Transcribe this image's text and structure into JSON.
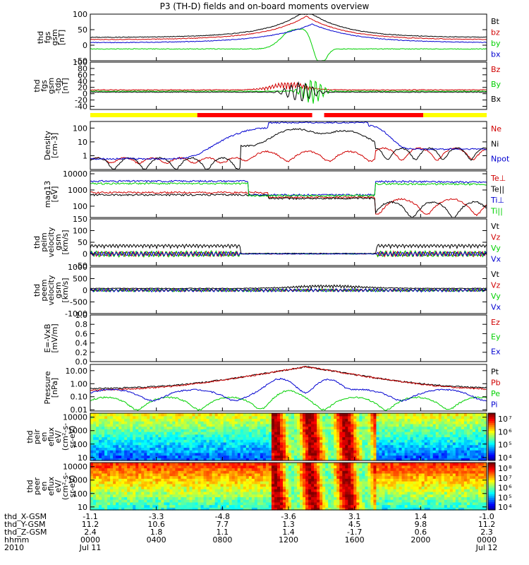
{
  "chart_data": {
    "type": "line",
    "title": "P3 (TH-D) fields and on-board moments overview",
    "time_axis": {
      "rows": [
        {
          "label": "thd_X-GSM",
          "values": [
            "-1.1",
            "-3.3",
            "-4.8",
            "-3.6",
            "3.1",
            "1.4",
            "-1.0"
          ]
        },
        {
          "label": "thd_Y-GSM",
          "values": [
            "11.2",
            "10.6",
            "7.7",
            "1.3",
            "4.5",
            "9.8",
            "11.2"
          ]
        },
        {
          "label": "thd_Z-GSM",
          "values": [
            "2.4",
            "1.8",
            "1.1",
            "1.4",
            "-1.7",
            "0.6",
            "2.3"
          ]
        },
        {
          "label": "hhmm",
          "values": [
            "0000",
            "0400",
            "0800",
            "1200",
            "1600",
            "2000",
            "0000"
          ]
        },
        {
          "label": "2010",
          "values": [
            "Jul 11",
            "",
            "",
            "",
            "",
            "",
            "Jul 12"
          ]
        }
      ]
    },
    "panels": [
      {
        "id": "fgs-gsm",
        "ylabel": [
          "thd",
          "fgs",
          "gsm",
          "[nT]"
        ],
        "ylim": [
          -50,
          100
        ],
        "scale": "linear",
        "ticks": [
          "100",
          "50",
          "0",
          "-50"
        ],
        "series": [
          {
            "name": "Bt",
            "color": "#000000"
          },
          {
            "name": "bz",
            "color": "#d00000"
          },
          {
            "name": "by",
            "color": "#00d000"
          },
          {
            "name": "bx",
            "color": "#0000d0"
          }
        ]
      },
      {
        "id": "fgs-gsm-tdp",
        "ylabel": [
          "thd",
          "fgs",
          "gsm",
          "-tdp",
          "[nT]"
        ],
        "ylim": [
          -50,
          100
        ],
        "scale": "linear",
        "ticks": [
          "100",
          "80",
          "60",
          "40",
          "20",
          "0",
          "-20",
          "-40"
        ],
        "series": [
          {
            "name": "Bz",
            "color": "#d00000"
          },
          {
            "name": "By",
            "color": "#00d000"
          },
          {
            "name": "Bx",
            "color": "#000000"
          }
        ]
      },
      {
        "id": "density",
        "ylabel": [
          "Density",
          "[cm-3]"
        ],
        "ylim": [
          0.1,
          300
        ],
        "scale": "log",
        "ticks": [
          "100",
          "10",
          "1"
        ],
        "series": [
          {
            "name": "Ne",
            "color": "#d00000"
          },
          {
            "name": "Ni",
            "color": "#000000"
          },
          {
            "name": "Npot",
            "color": "#0000d0"
          }
        ]
      },
      {
        "id": "temperature",
        "ylabel": [
          "mag13",
          "[eV]"
        ],
        "ylim": [
          20,
          15000
        ],
        "scale": "log",
        "ticks": [
          "10000",
          "1000",
          "100"
        ],
        "series": [
          {
            "name": "Te⊥",
            "color": "#d00000"
          },
          {
            "name": "Te||",
            "color": "#000000"
          },
          {
            "name": "Ti⊥",
            "color": "#0000d0"
          },
          {
            "name": "Ti||",
            "color": "#00d000"
          }
        ]
      },
      {
        "id": "peim-velocity",
        "ylabel": [
          "thd",
          "peim",
          "velocity",
          "gsm",
          "[km/s]"
        ],
        "ylim": [
          -50,
          150
        ],
        "scale": "linear",
        "ticks": [
          "150",
          "100",
          "50",
          "0",
          "-50"
        ],
        "series": [
          {
            "name": "Vt",
            "color": "#000000"
          },
          {
            "name": "Vz",
            "color": "#d00000"
          },
          {
            "name": "Vy",
            "color": "#00d000"
          },
          {
            "name": "Vx",
            "color": "#0000d0"
          }
        ]
      },
      {
        "id": "peem-velocity",
        "ylabel": [
          "thd",
          "peem",
          "velocity",
          "gsm",
          "[km/s]"
        ],
        "ylim": [
          -1000,
          1000
        ],
        "scale": "linear",
        "ticks": [
          "1000",
          "500",
          "0",
          "-500",
          "-1000"
        ],
        "series": [
          {
            "name": "Vt",
            "color": "#000000"
          },
          {
            "name": "Vz",
            "color": "#d00000"
          },
          {
            "name": "Vy",
            "color": "#00d000"
          },
          {
            "name": "Vx",
            "color": "#0000d0"
          }
        ]
      },
      {
        "id": "efield",
        "ylabel": [
          "E=-VxB",
          "[mV/m]"
        ],
        "ylim": [
          0,
          1
        ],
        "scale": "linear",
        "ticks": [
          "1.0",
          "0.8",
          "0.6",
          "0.4",
          "0.2",
          "0.0"
        ],
        "series": [
          {
            "name": "Ez",
            "color": "#d00000"
          },
          {
            "name": "Ey",
            "color": "#00d000"
          },
          {
            "name": "Ex",
            "color": "#0000d0"
          }
        ]
      },
      {
        "id": "pressure",
        "ylabel": [
          "Pressure",
          "[nPa]"
        ],
        "ylim": [
          0.008,
          30
        ],
        "scale": "log",
        "ticks": [
          "10.00",
          "1.00",
          "0.10",
          "0.01"
        ],
        "series": [
          {
            "name": "Pt",
            "color": "#000000"
          },
          {
            "name": "Pb",
            "color": "#d00000"
          },
          {
            "name": "Pe",
            "color": "#00d000"
          },
          {
            "name": "Pi",
            "color": "#0000d0"
          }
        ]
      },
      {
        "id": "peir-eflux",
        "ylabel": [
          "thd",
          "peir",
          "en",
          "eflux",
          "eV/",
          "(cm^2-s-",
          "sr-eV)"
        ],
        "ylim": [
          6,
          20000
        ],
        "scale": "log",
        "ticks": [
          "10000",
          "1000",
          "100",
          "10"
        ],
        "colorbar": [
          "10^7",
          "10^6",
          "10^5",
          "10^4"
        ]
      },
      {
        "id": "peer-eflux",
        "ylabel": [
          "thd",
          "peer",
          "en",
          "eflux",
          "eV/",
          "(cm^2-s-",
          "sr-eV)"
        ],
        "ylim": [
          6,
          20000
        ],
        "scale": "log",
        "ticks": [
          "10000",
          "1000",
          "100",
          "10"
        ],
        "colorbar": [
          "10^8",
          "10^7",
          "10^6",
          "10^5",
          "10^4"
        ]
      }
    ],
    "mode_bar": {
      "segments": [
        {
          "from": 0.0,
          "to": 0.27,
          "color": "#ffff00"
        },
        {
          "from": 0.27,
          "to": 0.56,
          "color": "#ff0000"
        },
        {
          "from": 0.56,
          "to": 0.59,
          "color": "#ffffff"
        },
        {
          "from": 0.59,
          "to": 0.84,
          "color": "#ff0000"
        },
        {
          "from": 0.84,
          "to": 1.0,
          "color": "#ffff00"
        }
      ]
    }
  }
}
